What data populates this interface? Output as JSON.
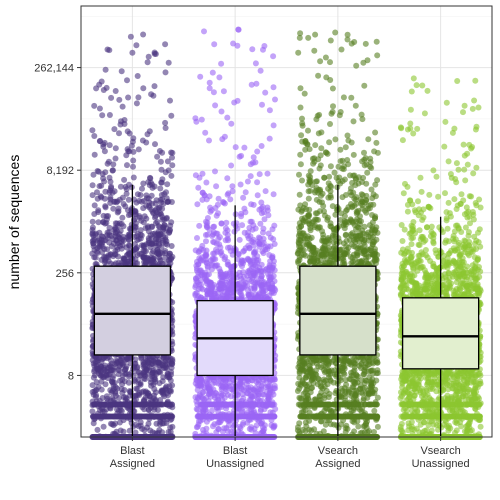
{
  "chart_data": {
    "type": "box",
    "ylabel": "number of sequences",
    "y_scale": "log2",
    "ylim": [
      1,
      2097152
    ],
    "y_ticks": [
      {
        "value": 8,
        "label": "8"
      },
      {
        "value": 256,
        "label": "256"
      },
      {
        "value": 8192,
        "label": "8,192"
      },
      {
        "value": 262144,
        "label": "262,144"
      }
    ],
    "grid": true,
    "jitter_points": true,
    "categories": [
      {
        "line1": "Blast",
        "line2": "Assigned"
      },
      {
        "line1": "Blast",
        "line2": "Unassigned"
      },
      {
        "line1": "Vsearch",
        "line2": "Assigned"
      },
      {
        "line1": "Vsearch",
        "line2": "Unassigned"
      }
    ],
    "series": [
      {
        "point_color": "#4b3580",
        "box_fill": "#d3cfe0",
        "min": 1,
        "q1": 16,
        "median": 64,
        "q3": 320,
        "whisker_low": 1,
        "whisker_high": 5000,
        "max": 900000
      },
      {
        "point_color": "#9b66f5",
        "box_fill": "#e3dbfb",
        "min": 1,
        "q1": 8,
        "median": 28,
        "q3": 100,
        "whisker_low": 1,
        "whisker_high": 2500,
        "max": 1000000
      },
      {
        "point_color": "#567f21",
        "box_fill": "#d6e0ca",
        "min": 1,
        "q1": 16,
        "median": 64,
        "q3": 320,
        "whisker_low": 1,
        "whisker_high": 5000,
        "max": 1000000
      },
      {
        "point_color": "#8cc631",
        "box_fill": "#e2efcf",
        "min": 1,
        "q1": 10,
        "median": 30,
        "q3": 110,
        "whisker_low": 1,
        "whisker_high": 1700,
        "max": 200000
      }
    ]
  }
}
